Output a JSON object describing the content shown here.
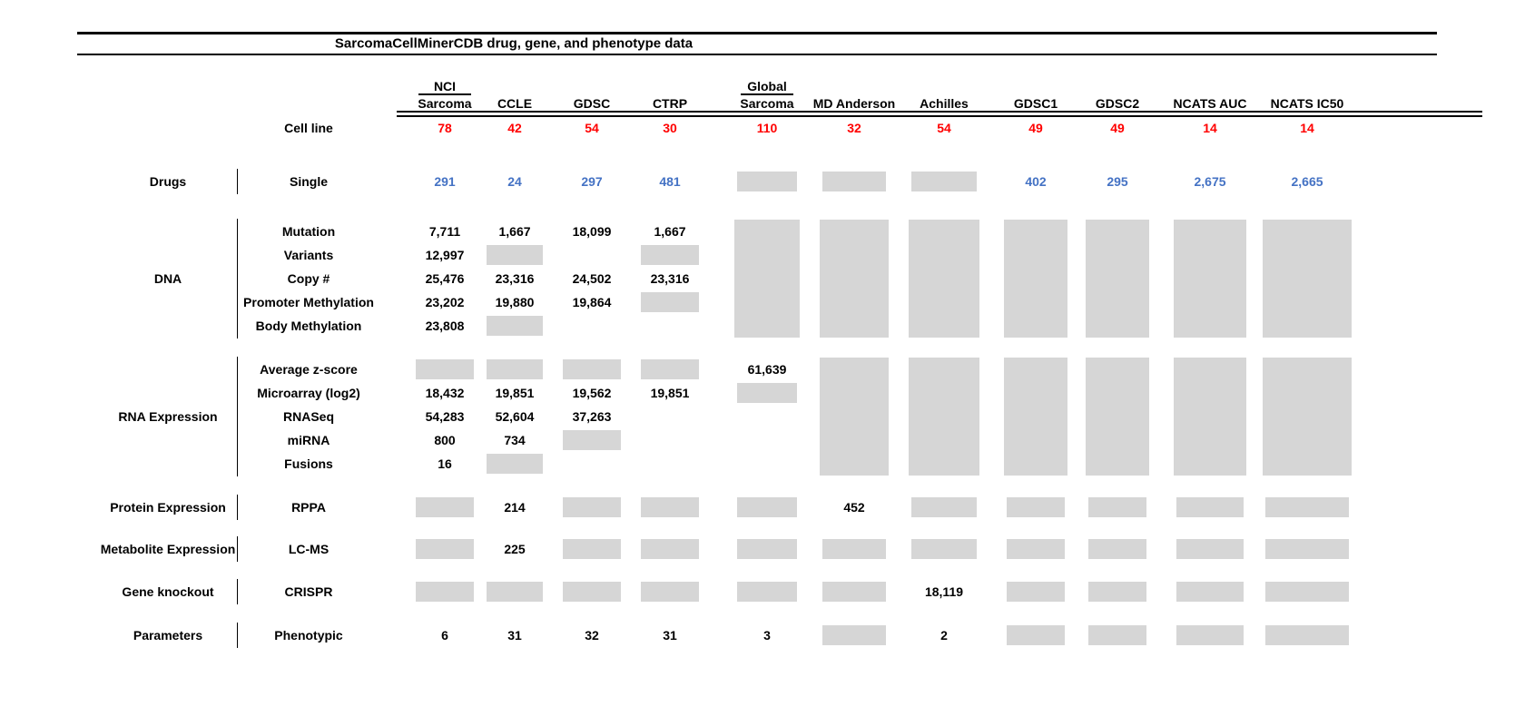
{
  "title": "SarcomaCellMinerCDB drug, gene, and phenotype data",
  "colors": {
    "cell_line_count": "#FF0000",
    "drug_count": "#4472C4",
    "not_available_box": "#D6D6D6",
    "text": "#000000"
  },
  "columns": [
    {
      "lines": [
        "NCI",
        "Sarcoma"
      ]
    },
    {
      "lines": [
        "CCLE"
      ]
    },
    {
      "lines": [
        "GDSC"
      ]
    },
    {
      "lines": [
        "CTRP"
      ]
    },
    {
      "lines": [
        "Global",
        "Sarcoma"
      ]
    },
    {
      "lines": [
        "MD Anderson"
      ]
    },
    {
      "lines": [
        "Achilles"
      ]
    },
    {
      "lines": [
        "GDSC1"
      ]
    },
    {
      "lines": [
        "GDSC2"
      ]
    },
    {
      "lines": [
        "NCATS AUC"
      ]
    },
    {
      "lines": [
        "NCATS IC50"
      ]
    }
  ],
  "cell_line_row": {
    "label": "Cell line",
    "values": [
      "78",
      "42",
      "54",
      "30",
      "110",
      "32",
      "54",
      "49",
      "49",
      "14",
      "14"
    ]
  },
  "sections": [
    {
      "group": "Drugs",
      "rows": [
        {
          "label": "Single",
          "value_color": "blue",
          "cells": [
            "291",
            "24",
            "297",
            "481",
            "gray",
            "gray",
            "gray",
            "402",
            "295",
            "2,675",
            "2,665"
          ]
        }
      ]
    },
    {
      "group": "DNA",
      "section_gray_columns": [
        4,
        5,
        6,
        7,
        8,
        9,
        10
      ],
      "rows": [
        {
          "label": "Mutation",
          "cells": [
            "7,711",
            "1,667",
            "18,099",
            "1,667",
            null,
            null,
            null,
            null,
            null,
            null,
            null
          ]
        },
        {
          "label": "Variants",
          "cells": [
            "12,997",
            "gray",
            null,
            "gray",
            null,
            null,
            null,
            null,
            null,
            null,
            null
          ]
        },
        {
          "label": "Copy #",
          "cells": [
            "25,476",
            "23,316",
            "24,502",
            "23,316",
            null,
            null,
            null,
            null,
            null,
            null,
            null
          ]
        },
        {
          "label": "Promoter Methylation",
          "cells": [
            "23,202",
            "19,880",
            "19,864",
            "gray",
            null,
            null,
            null,
            null,
            null,
            null,
            null
          ]
        },
        {
          "label": "Body Methylation",
          "cells": [
            "23,808",
            "gray",
            null,
            null,
            null,
            null,
            null,
            null,
            null,
            null,
            null
          ]
        }
      ]
    },
    {
      "group": "RNA Expression",
      "section_gray_columns": [
        5,
        6,
        7,
        8,
        9,
        10
      ],
      "rows": [
        {
          "label": "Average z-score",
          "cells": [
            "gray",
            "gray",
            "gray",
            "gray",
            "61,639",
            null,
            null,
            null,
            null,
            null,
            null
          ]
        },
        {
          "label": "Microarray (log2)",
          "cells": [
            "18,432",
            "19,851",
            "19,562",
            "19,851",
            "gray",
            null,
            null,
            null,
            null,
            null,
            null
          ]
        },
        {
          "label": "RNASeq",
          "cells": [
            "54,283",
            "52,604",
            "37,263",
            null,
            null,
            null,
            null,
            null,
            null,
            null,
            null
          ]
        },
        {
          "label": "miRNA",
          "cells": [
            "800",
            "734",
            "gray",
            null,
            null,
            null,
            null,
            null,
            null,
            null,
            null
          ]
        },
        {
          "label": "Fusions",
          "cells": [
            "16",
            "gray",
            null,
            null,
            null,
            null,
            null,
            null,
            null,
            null,
            null
          ]
        }
      ]
    },
    {
      "group": "Protein Expression",
      "rows": [
        {
          "label": "RPPA",
          "cells": [
            "gray",
            "214",
            "gray",
            "gray",
            "gray",
            "452",
            "gray",
            "gray",
            "gray",
            "gray",
            "gray"
          ]
        }
      ]
    },
    {
      "group": "Metabolite Expression",
      "rows": [
        {
          "label": "LC-MS",
          "cells": [
            "gray",
            "225",
            "gray",
            "gray",
            "gray",
            "gray",
            "gray",
            "gray",
            "gray",
            "gray",
            "gray"
          ]
        }
      ]
    },
    {
      "group": "Gene knockout",
      "rows": [
        {
          "label": "CRISPR",
          "cells": [
            "gray",
            "gray",
            "gray",
            "gray",
            "gray",
            "gray",
            "18,119",
            "gray",
            "gray",
            "gray",
            "gray"
          ]
        }
      ]
    },
    {
      "group": "Parameters",
      "rows": [
        {
          "label": "Phenotypic",
          "cells": [
            "6",
            "31",
            "32",
            "31",
            "3",
            "gray",
            "2",
            "gray",
            "gray",
            "gray",
            "gray"
          ]
        }
      ]
    }
  ]
}
